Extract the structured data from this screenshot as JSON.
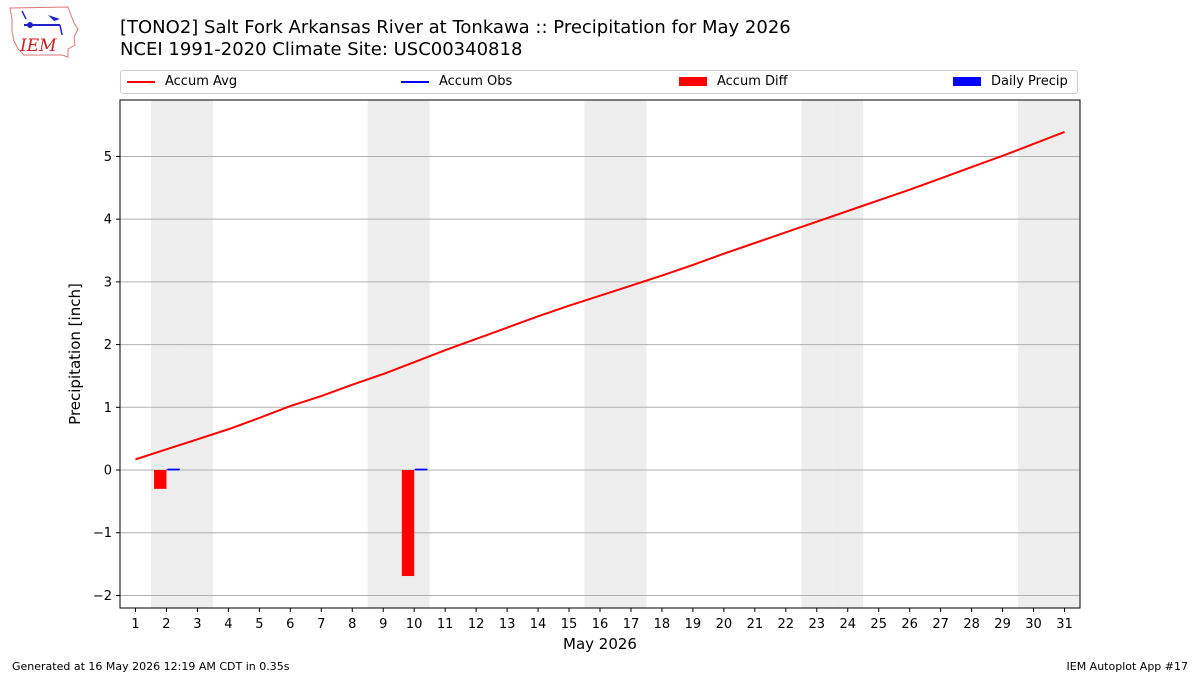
{
  "header": {
    "title_line1": "[TONO2] Salt Fork Arkansas River at Tonkawa :: Precipitation for May 2026",
    "title_line2": "NCEI 1991-2020 Climate Site: USC00340818"
  },
  "logo": {
    "text": "IEM"
  },
  "footer": {
    "generated": "Generated at 16 May 2026 12:19 AM CDT in 0.35s",
    "app": "IEM Autoplot App #17"
  },
  "colors": {
    "accum_avg": "#ff0000",
    "accum_obs": "#0000ff",
    "accum_diff": "#ff0000",
    "daily_precip": "#0000ff",
    "weekend_shade": "#eeeeee",
    "grid": "#b0b0b0"
  },
  "chart_data": {
    "type": "bar",
    "xlabel": "May 2026",
    "ylabel": "Precipitation [inch]",
    "xlim": [
      0.5,
      31.5
    ],
    "ylim": [
      -2.2,
      5.9
    ],
    "yticks": [
      -2,
      -1,
      0,
      1,
      2,
      3,
      4,
      5
    ],
    "x": [
      1,
      2,
      3,
      4,
      5,
      6,
      7,
      8,
      9,
      10,
      11,
      12,
      13,
      14,
      15,
      16,
      17,
      18,
      19,
      20,
      21,
      22,
      23,
      24,
      25,
      26,
      27,
      28,
      29,
      30,
      31
    ],
    "weekend_days": [
      2,
      3,
      9,
      10,
      16,
      17,
      23,
      24,
      30,
      31
    ],
    "grid": "horizontal",
    "legend": {
      "placement": "top",
      "entries": [
        "Accum Avg",
        "Accum Obs",
        "Accum Diff",
        "Daily Precip"
      ]
    },
    "series": [
      {
        "name": "Accum Avg",
        "type": "line",
        "values": [
          0.17,
          0.33,
          0.49,
          0.65,
          0.83,
          1.02,
          1.18,
          1.36,
          1.53,
          1.72,
          1.91,
          2.09,
          2.27,
          2.45,
          2.62,
          2.78,
          2.94,
          3.1,
          3.27,
          3.45,
          3.62,
          3.79,
          3.96,
          4.13,
          4.3,
          4.47,
          4.65,
          4.83,
          5.01,
          5.2,
          5.39
        ]
      },
      {
        "name": "Accum Obs",
        "type": "line",
        "x": [
          2,
          10
        ],
        "values": [
          0.01,
          0.01
        ]
      },
      {
        "name": "Accum Diff",
        "type": "bar",
        "x": [
          2,
          10
        ],
        "values": [
          -0.3,
          -1.69
        ]
      },
      {
        "name": "Daily Precip",
        "type": "bar",
        "x": [
          2,
          10
        ],
        "values": [
          0.01,
          0.01
        ]
      }
    ]
  }
}
